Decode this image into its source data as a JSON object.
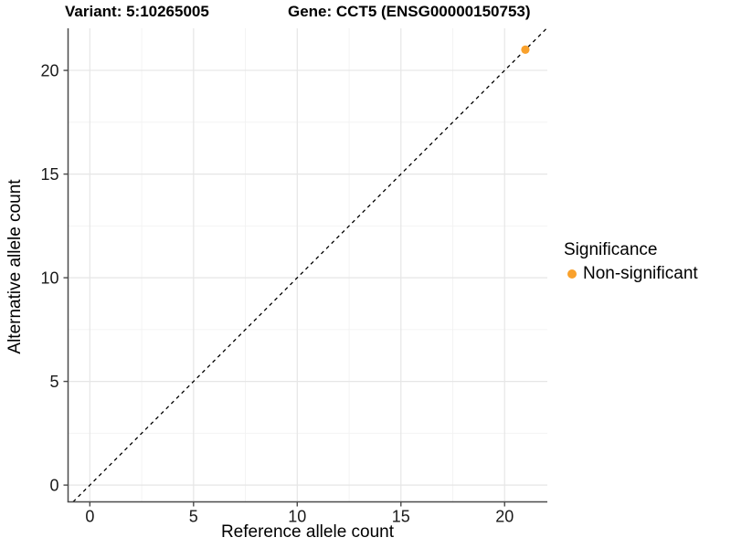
{
  "chart_data": {
    "type": "scatter",
    "title_left": "Variant: 5:10265005",
    "title_right": "Gene: CCT5 (ENSG00000150753)",
    "xlabel": "Reference allele count",
    "ylabel": "Alternative allele count",
    "xlim": [
      -1.05,
      22.06
    ],
    "ylim": [
      -0.81,
      22.03
    ],
    "xticks": [
      0,
      5,
      10,
      15,
      20
    ],
    "yticks": [
      0,
      5,
      10,
      15,
      20
    ],
    "minor_offset": 2.5,
    "grid": {
      "major_color": "#E6E6E6",
      "minor_color": "#F2F2F2"
    },
    "axis_color": "#4a4a4a",
    "tick_label_color": "#1a1a1a",
    "identity_line": {
      "slope": 1,
      "intercept": 0,
      "style": "dashed",
      "color": "#000000"
    },
    "series": [
      {
        "name": "Non-significant",
        "color": "#F9A12C",
        "points": [
          {
            "x": 21,
            "y": 21
          }
        ]
      }
    ],
    "legend": {
      "title": "Significance",
      "position": "right",
      "entries": [
        {
          "label": "Non-significant",
          "color": "#F9A12C"
        }
      ]
    }
  }
}
